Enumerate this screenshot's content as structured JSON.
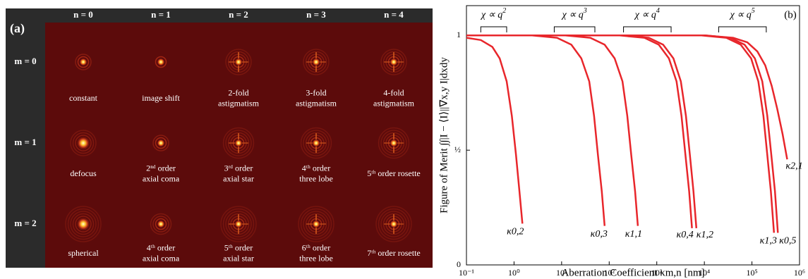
{
  "panel_a": {
    "label": "(a)",
    "columns": [
      "n = 0",
      "n = 1",
      "n = 2",
      "n = 3",
      "n = 4"
    ],
    "rows": [
      "m = 0",
      "m = 1",
      "m = 2"
    ],
    "captions": [
      [
        [
          "constant"
        ],
        [
          "image shift"
        ],
        [
          "2-fold",
          "astigmatism"
        ],
        [
          "3-fold",
          "astigmatism"
        ],
        [
          "4-fold",
          "astigmatism"
        ]
      ],
      [
        [
          "defocus"
        ],
        [
          "2ⁿᵈ order",
          "axial coma"
        ],
        [
          "3ʳᵈ order",
          "axial star"
        ],
        [
          "4ᵗʰ order",
          "three lobe"
        ],
        [
          "5ᵗʰ order rosette"
        ]
      ],
      [
        [
          "spherical"
        ],
        [
          "4ᵗʰ order",
          "axial coma"
        ],
        [
          "5ᵗʰ order",
          "axial star"
        ],
        [
          "6ᵗʰ order",
          "three lobe"
        ],
        [
          "7ᵗʰ order rosette"
        ]
      ]
    ]
  },
  "chart_data": {
    "type": "line",
    "label": "(b)",
    "x_label": "Aberration Coefficient κm,n [nm]",
    "y_label": "Figure of Merit ∫∫|I − ⟨I⟩||∇x,y I|dxdy",
    "log_x": true,
    "color": "#e8262b",
    "xlim": [
      0.1,
      1000000
    ],
    "ylim": [
      0,
      1.13
    ],
    "xticks": [
      {
        "value": 0.1,
        "label": "10⁻¹"
      },
      {
        "value": 1,
        "label": "10⁰"
      },
      {
        "value": 10,
        "label": "10¹"
      },
      {
        "value": 100,
        "label": "10²"
      },
      {
        "value": 1000,
        "label": "10³"
      },
      {
        "value": 10000,
        "label": "10⁴"
      },
      {
        "value": 100000,
        "label": "10⁵"
      },
      {
        "value": 1000000,
        "label": "10⁶"
      }
    ],
    "yticks": [
      0,
      {
        "value": 0.5,
        "label": "½"
      },
      1
    ],
    "annotations": [
      {
        "text": "χ ∝ q",
        "exponent": "2",
        "xrange": [
          0.2,
          0.7
        ]
      },
      {
        "text": "χ ∝ q",
        "exponent": "3",
        "xrange": [
          7,
          50
        ]
      },
      {
        "text": "χ ∝ q",
        "exponent": "4",
        "xrange": [
          200,
          2000
        ]
      },
      {
        "text": "χ ∝ q",
        "exponent": "5",
        "xrange": [
          20000,
          200000
        ]
      }
    ],
    "series": [
      {
        "name": "κ0,2",
        "x": [
          0.1,
          0.2,
          0.35,
          0.5,
          0.7,
          0.9,
          1.1,
          1.3,
          1.5
        ],
        "values": [
          0.99,
          0.98,
          0.95,
          0.9,
          0.8,
          0.65,
          0.48,
          0.32,
          0.18
        ]
      },
      {
        "name": "κ0,3",
        "x": [
          0.1,
          2.4,
          8,
          16,
          26,
          38,
          48,
          58,
          70,
          80
        ],
        "values": [
          1,
          1,
          0.99,
          0.96,
          0.9,
          0.8,
          0.65,
          0.48,
          0.32,
          0.17
        ]
      },
      {
        "name": "κ1,1",
        "x": [
          0.1,
          12,
          40,
          80,
          130,
          190,
          240,
          290,
          350,
          400
        ],
        "values": [
          1,
          1,
          0.99,
          0.96,
          0.9,
          0.8,
          0.65,
          0.48,
          0.32,
          0.17
        ]
      },
      {
        "name": "κ0,4",
        "x": [
          0.1,
          165,
          550,
          1100,
          1800,
          2600,
          3300,
          4000,
          4800,
          5500
        ],
        "values": [
          1,
          1,
          0.99,
          0.96,
          0.9,
          0.8,
          0.65,
          0.48,
          0.32,
          0.16
        ]
      },
      {
        "name": "κ1,2",
        "x": [
          0.1,
          200,
          680,
          1360,
          2240,
          3200,
          4100,
          4950,
          5900,
          6800
        ],
        "values": [
          1,
          1,
          0.99,
          0.96,
          0.9,
          0.8,
          0.65,
          0.48,
          0.32,
          0.16
        ]
      },
      {
        "name": "κ1,3",
        "x": [
          0.1,
          8700,
          29000,
          58000,
          96000,
          136000,
          174000,
          210000,
          250000,
          290000
        ],
        "values": [
          1,
          1,
          0.99,
          0.96,
          0.9,
          0.8,
          0.65,
          0.48,
          0.32,
          0.14
        ]
      },
      {
        "name": "κ0,5",
        "x": [
          0.1,
          10500,
          35000,
          70000,
          115000,
          165000,
          210000,
          255000,
          305000,
          350000
        ],
        "values": [
          1,
          1,
          0.99,
          0.96,
          0.9,
          0.8,
          0.65,
          0.48,
          0.32,
          0.14
        ]
      },
      {
        "name": "κ2,1",
        "x": [
          0.1,
          10000,
          40000,
          80000,
          130000,
          190000,
          260000,
          340000,
          440000,
          550000
        ],
        "values": [
          1,
          1,
          0.99,
          0.97,
          0.93,
          0.87,
          0.78,
          0.68,
          0.57,
          0.46
        ]
      }
    ]
  }
}
